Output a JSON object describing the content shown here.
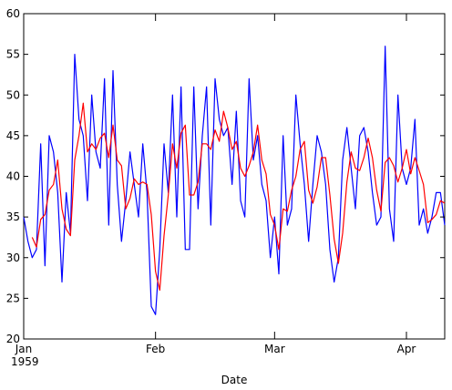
{
  "chart_data": {
    "type": "line",
    "xlabel": "Date",
    "ylabel": "",
    "ylim": [
      20,
      60
    ],
    "y_ticks": [
      20,
      25,
      30,
      35,
      40,
      45,
      50,
      55,
      60
    ],
    "x_ticks": [
      {
        "label": "Jan",
        "sublabel": "1959",
        "date": "1959-01-01"
      },
      {
        "label": "Feb",
        "sublabel": "",
        "date": "1959-02-01"
      },
      {
        "label": "Mar",
        "sublabel": "",
        "date": "1959-03-01"
      },
      {
        "label": "Apr",
        "sublabel": "",
        "date": "1959-04-01"
      }
    ],
    "x_range": [
      "1959-01-01",
      "1959-04-10"
    ],
    "grid": false,
    "series": [
      {
        "color": "#0000ff",
        "start_date": "1959-01-01",
        "values": [
          35,
          32,
          30,
          31,
          44,
          29,
          45,
          43,
          38,
          27,
          38,
          33,
          55,
          47,
          45,
          37,
          50,
          43,
          41,
          52,
          34,
          53,
          39,
          32,
          37,
          43,
          39,
          35,
          44,
          38,
          24,
          23,
          31,
          44,
          38,
          50,
          35,
          51,
          31,
          31,
          51,
          36,
          45,
          51,
          34,
          52,
          47,
          45,
          46,
          39,
          48,
          37,
          35,
          52,
          42,
          45,
          39,
          37,
          30,
          35,
          28,
          45,
          34,
          36,
          50,
          44,
          39,
          32,
          39,
          45,
          43,
          39,
          31,
          27,
          30,
          42,
          46,
          41,
          36,
          45,
          46,
          43,
          38,
          34,
          35,
          56,
          36,
          32,
          50,
          41,
          39,
          41,
          47,
          34,
          36,
          33,
          35,
          38,
          38,
          34
        ]
      },
      {
        "color": "#ff0000",
        "start_date": "1959-01-01",
        "values": [
          null,
          null,
          32.5,
          31.3,
          34.7,
          35.3,
          38.3,
          39.0,
          42.0,
          36.0,
          33.5,
          32.7,
          42.0,
          45.0,
          49.0,
          43.0,
          44.0,
          43.3,
          44.7,
          45.3,
          42.3,
          46.3,
          42.0,
          41.3,
          36.0,
          37.3,
          39.7,
          39.0,
          39.3,
          39.0,
          35.3,
          28.3,
          26.0,
          32.7,
          37.7,
          44.0,
          41.0,
          45.3,
          46.3,
          37.7,
          37.7,
          39.3,
          44.0,
          44.0,
          43.3,
          45.7,
          44.3,
          48.0,
          46.0,
          43.3,
          44.3,
          41.0,
          40.0,
          41.3,
          43.0,
          46.3,
          42.0,
          40.3,
          35.3,
          34.0,
          31.0,
          36.0,
          35.7,
          38.3,
          40.0,
          43.3,
          44.3,
          38.3,
          36.7,
          38.7,
          42.3,
          42.3,
          37.7,
          32.3,
          29.3,
          33.0,
          39.3,
          43.0,
          41.0,
          40.7,
          42.3,
          44.7,
          42.3,
          38.3,
          35.7,
          41.7,
          42.3,
          41.3,
          39.3,
          41.0,
          43.3,
          40.3,
          42.3,
          40.7,
          39.0,
          34.3,
          34.7,
          35.3,
          37.0,
          36.7
        ]
      }
    ]
  }
}
